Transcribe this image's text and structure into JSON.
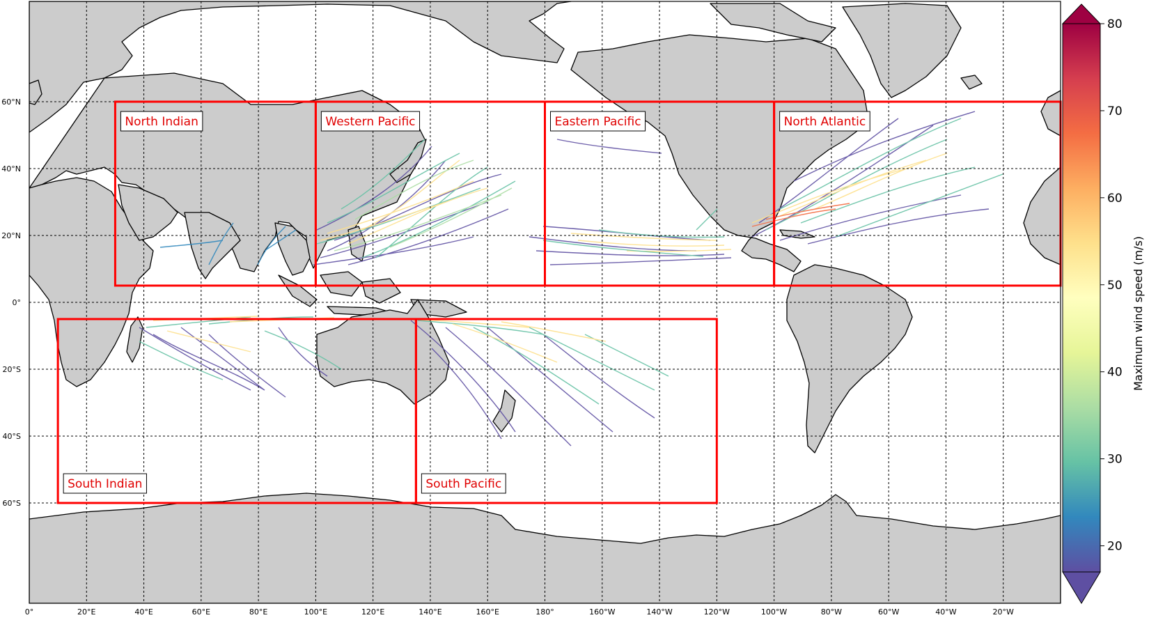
{
  "map": {
    "projection": "PlateCarree, central longitude 180°",
    "lon_range": [
      0,
      360
    ],
    "lat_range": [
      -90,
      90
    ],
    "x_ticks": [
      {
        "lon": 0,
        "label": "0°"
      },
      {
        "lon": 20,
        "label": "20°E"
      },
      {
        "lon": 40,
        "label": "40°E"
      },
      {
        "lon": 60,
        "label": "60°E"
      },
      {
        "lon": 80,
        "label": "80°E"
      },
      {
        "lon": 100,
        "label": "100°E"
      },
      {
        "lon": 120,
        "label": "120°E"
      },
      {
        "lon": 140,
        "label": "140°E"
      },
      {
        "lon": 160,
        "label": "160°E"
      },
      {
        "lon": 180,
        "label": "180°"
      },
      {
        "lon": 200,
        "label": "160°W"
      },
      {
        "lon": 220,
        "label": "140°W"
      },
      {
        "lon": 240,
        "label": "120°W"
      },
      {
        "lon": 260,
        "label": "100°W"
      },
      {
        "lon": 280,
        "label": "80°W"
      },
      {
        "lon": 300,
        "label": "60°W"
      },
      {
        "lon": 320,
        "label": "40°W"
      },
      {
        "lon": 340,
        "label": "20°W"
      }
    ],
    "y_ticks": [
      {
        "lat": 60,
        "label": "60°N"
      },
      {
        "lat": 40,
        "label": "40°N"
      },
      {
        "lat": 20,
        "label": "20°N"
      },
      {
        "lat": 0,
        "label": "0°"
      },
      {
        "lat": -20,
        "label": "20°S"
      },
      {
        "lat": -40,
        "label": "40°S"
      },
      {
        "lat": -60,
        "label": "60°S"
      }
    ],
    "gridlines": "dashed",
    "land_color": "#cccccc",
    "coast_color": "#000000"
  },
  "regions": [
    {
      "name": "North Indian",
      "lon": [
        30,
        100
      ],
      "lat": [
        5,
        60
      ]
    },
    {
      "name": "Western Pacific",
      "lon": [
        100,
        180
      ],
      "lat": [
        5,
        60
      ]
    },
    {
      "name": "Eastern Pacific",
      "lon": [
        180,
        260
      ],
      "lat": [
        5,
        60
      ]
    },
    {
      "name": "North Atlantic",
      "lon": [
        260,
        360
      ],
      "lat": [
        5,
        60
      ]
    },
    {
      "name": "South Indian",
      "lon": [
        10,
        135
      ],
      "lat": [
        -60,
        -5
      ]
    },
    {
      "name": "South Pacific",
      "lon": [
        135,
        240
      ],
      "lat": [
        -60,
        -5
      ]
    }
  ],
  "region_color": "#ff0000",
  "colorbar": {
    "title": "Maximum wind speed (m/s)",
    "min": 17,
    "max": 80,
    "ticks": [
      20,
      30,
      40,
      50,
      60,
      70,
      80
    ],
    "extend": "both",
    "colormap": "Spectral_r"
  }
}
